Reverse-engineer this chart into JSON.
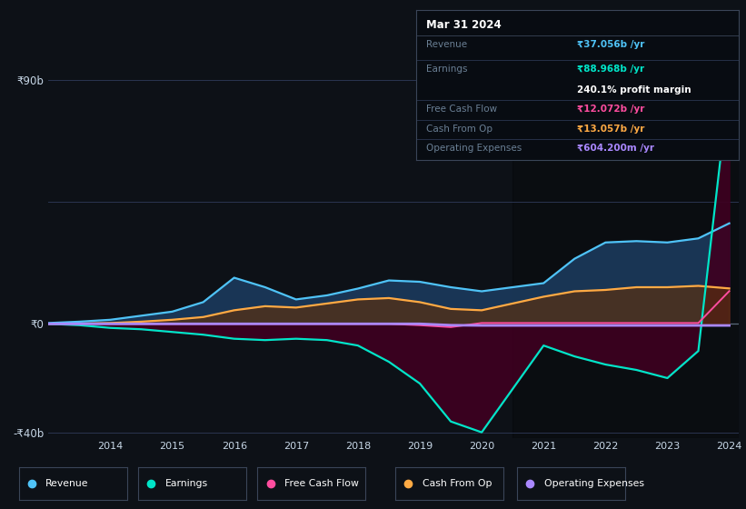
{
  "bg_color": "#0d1117",
  "plot_bg_color": "#0d1117",
  "y90_line_color": "#2a3550",
  "y45_line_color": "#2a3550",
  "y0_line_color": "#5a6a7a",
  "ylim": [
    -42,
    95
  ],
  "years": [
    2013.0,
    2013.5,
    2014.0,
    2014.5,
    2015.0,
    2015.5,
    2016.0,
    2016.5,
    2017.0,
    2017.5,
    2018.0,
    2018.5,
    2019.0,
    2019.5,
    2020.0,
    2020.5,
    2021.0,
    2021.5,
    2022.0,
    2022.5,
    2023.0,
    2023.5,
    2024.0
  ],
  "revenue": [
    0.3,
    0.8,
    1.5,
    3.0,
    4.5,
    8.0,
    17.0,
    13.5,
    9.0,
    10.5,
    13.0,
    16.0,
    15.5,
    13.5,
    12.0,
    13.5,
    15.0,
    24.0,
    30.0,
    30.5,
    30.0,
    31.5,
    37.056
  ],
  "earnings": [
    0.0,
    -0.5,
    -1.5,
    -2.0,
    -3.0,
    -4.0,
    -5.5,
    -6.0,
    -5.5,
    -6.0,
    -8.0,
    -14.0,
    -22.0,
    -36.0,
    -40.0,
    -24.0,
    -8.0,
    -12.0,
    -15.0,
    -17.0,
    -20.0,
    -10.0,
    88.968
  ],
  "free_cash_flow": [
    0.0,
    0.0,
    0.0,
    0.0,
    0.0,
    0.0,
    0.0,
    0.0,
    0.0,
    0.0,
    0.0,
    0.0,
    -0.5,
    -1.2,
    0.3,
    0.3,
    0.3,
    0.3,
    0.3,
    0.3,
    0.3,
    0.3,
    12.072
  ],
  "cash_from_op": [
    0.0,
    0.1,
    0.3,
    0.8,
    1.5,
    2.5,
    5.0,
    6.5,
    6.0,
    7.5,
    9.0,
    9.5,
    8.0,
    5.5,
    5.0,
    7.5,
    10.0,
    12.0,
    12.5,
    13.5,
    13.5,
    14.0,
    13.057
  ],
  "operating_expenses": [
    0.0,
    0.0,
    0.0,
    0.0,
    0.0,
    0.0,
    0.0,
    0.0,
    0.0,
    0.0,
    0.0,
    0.0,
    0.0,
    -0.5,
    -0.6,
    -0.6,
    -0.6,
    -0.6,
    -0.6,
    -0.6,
    -0.6,
    -0.6,
    -0.604
  ],
  "revenue_color": "#4fc3f7",
  "revenue_fill": "#1b3a5c",
  "earnings_color": "#00e5c8",
  "earnings_fill": "#3d0020",
  "free_cash_flow_color": "#ff4d9f",
  "cash_from_op_color": "#ffaa44",
  "cash_from_op_fill": "#5a3010",
  "operating_expenses_color": "#aa88ff",
  "box_bg": "#080c12",
  "box_border": "#3a4558",
  "box_title": "Mar 31 2024",
  "box_revenue_label": "Revenue",
  "box_revenue_value": "₹37.056b /yr",
  "box_earnings_label": "Earnings",
  "box_earnings_value": "₹88.968b /yr",
  "box_margin_value": "240.1% profit margin",
  "box_fcf_label": "Free Cash Flow",
  "box_fcf_value": "₹12.072b /yr",
  "box_cashop_label": "Cash From Op",
  "box_cashop_value": "₹13.057b /yr",
  "box_opex_label": "Operating Expenses",
  "box_opex_value": "₹604.200m /yr",
  "legend_labels": [
    "Revenue",
    "Earnings",
    "Free Cash Flow",
    "Cash From Op",
    "Operating Expenses"
  ],
  "legend_colors": [
    "#4fc3f7",
    "#00e5c8",
    "#ff4d9f",
    "#ffaa44",
    "#aa88ff"
  ],
  "text_dim": "#6a7f94",
  "text_bright": "#c8d8e8"
}
